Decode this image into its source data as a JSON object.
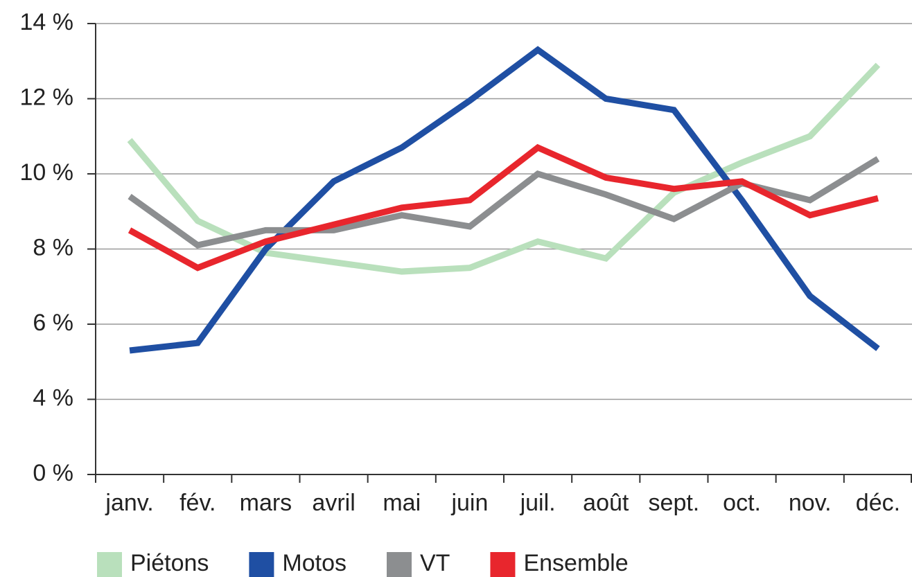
{
  "chart_data": {
    "type": "line",
    "categories": [
      "janv.",
      "fév.",
      "mars",
      "avril",
      "mai",
      "juin",
      "juil.",
      "août",
      "sept.",
      "oct.",
      "nov.",
      "déc."
    ],
    "series": [
      {
        "name": "Piétons",
        "color": "#b9e0bc",
        "values": [
          10.9,
          8.75,
          7.9,
          7.65,
          7.4,
          7.5,
          8.2,
          7.75,
          9.5,
          10.3,
          11.0,
          12.9
        ]
      },
      {
        "name": "Motos",
        "color": "#1f4fa3",
        "values": [
          5.3,
          5.5,
          8.0,
          9.8,
          10.7,
          11.95,
          13.3,
          12.0,
          11.7,
          9.3,
          6.75,
          5.35
        ]
      },
      {
        "name": "VT",
        "color": "#8c8e90",
        "values": [
          9.4,
          8.1,
          8.5,
          8.5,
          8.9,
          8.6,
          10.0,
          9.45,
          8.8,
          9.75,
          9.3,
          10.4
        ]
      },
      {
        "name": "Ensemble",
        "color": "#e8262d",
        "values": [
          8.5,
          7.5,
          8.2,
          8.65,
          9.1,
          9.3,
          10.7,
          9.9,
          9.6,
          9.8,
          8.9,
          9.35
        ]
      }
    ],
    "ylim": [
      0,
      14
    ],
    "axis_break": [
      0,
      2
    ],
    "yticks": [
      {
        "value": 0,
        "label": "0 %"
      },
      {
        "value": 4,
        "label": "4 %"
      },
      {
        "value": 6,
        "label": "6 %"
      },
      {
        "value": 8,
        "label": "8 %"
      },
      {
        "value": 10,
        "label": "10 %"
      },
      {
        "value": 12,
        "label": "12 %"
      },
      {
        "value": 14,
        "label": "14 %"
      }
    ],
    "grid": true,
    "legend": "bottom"
  }
}
